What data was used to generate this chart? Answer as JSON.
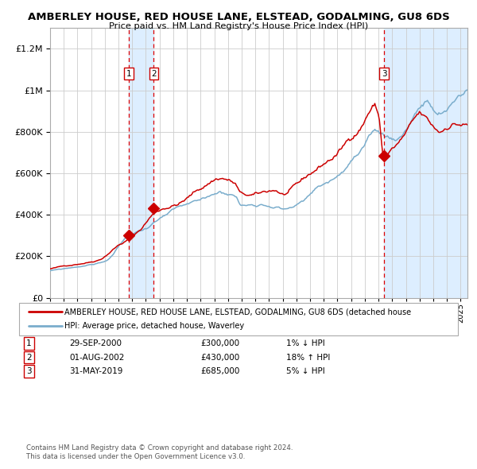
{
  "title": "AMBERLEY HOUSE, RED HOUSE LANE, ELSTEAD, GODALMING, GU8 6DS",
  "subtitle": "Price paid vs. HM Land Registry's House Price Index (HPI)",
  "legend_red": "AMBERLEY HOUSE, RED HOUSE LANE, ELSTEAD, GODALMING, GU8 6DS (detached house",
  "legend_blue": "HPI: Average price, detached house, Waverley",
  "footer1": "Contains HM Land Registry data © Crown copyright and database right 2024.",
  "footer2": "This data is licensed under the Open Government Licence v3.0.",
  "transactions": [
    {
      "num": 1,
      "date": "29-SEP-2000",
      "price": 300000,
      "hpi_diff": "1% ↓ HPI",
      "x_year": 2000.75
    },
    {
      "num": 2,
      "date": "01-AUG-2002",
      "price": 430000,
      "hpi_diff": "18% ↑ HPI",
      "x_year": 2002.58
    },
    {
      "num": 3,
      "date": "31-MAY-2019",
      "price": 685000,
      "hpi_diff": "5% ↓ HPI",
      "x_year": 2019.41
    }
  ],
  "red_color": "#cc0000",
  "blue_color": "#7aadcc",
  "bg_color": "#ffffff",
  "grid_color": "#cccccc",
  "highlight_color": "#ddeeff",
  "dashed_color": "#dd0000",
  "ylim": [
    0,
    1300000
  ],
  "xlim_start": 1995.0,
  "xlim_end": 2025.5,
  "marker_prices": [
    300000,
    430000,
    685000
  ]
}
